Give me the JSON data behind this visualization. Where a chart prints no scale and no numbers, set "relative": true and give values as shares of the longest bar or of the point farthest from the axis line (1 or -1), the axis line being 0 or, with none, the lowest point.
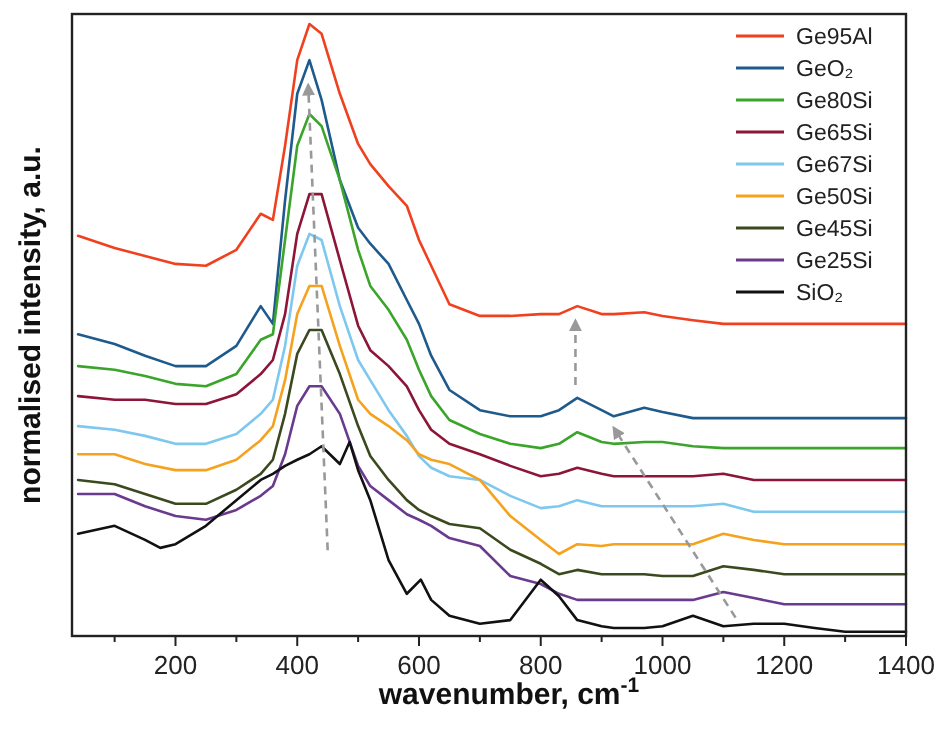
{
  "chart_data": {
    "type": "line",
    "relative": true,
    "xlabel": "wavenumber, cm$^{-1}$",
    "ylabel": "normalised intensity, a.u.",
    "xlim": [
      30,
      1400
    ],
    "xticks": [
      {
        "value": 100,
        "label": null
      },
      200,
      {
        "value": 300,
        "label": null
      },
      400,
      {
        "value": 500,
        "label": null
      },
      600,
      {
        "value": 700,
        "label": null
      },
      800,
      {
        "value": 900,
        "label": null
      },
      1000,
      {
        "value": 1100,
        "label": null
      },
      1200,
      {
        "value": 1300,
        "label": null
      },
      1400
    ],
    "x": [
      40,
      100,
      150,
      200,
      250,
      300,
      340,
      360,
      380,
      400,
      420,
      440,
      470,
      500,
      520,
      550,
      580,
      600,
      620,
      650,
      700,
      750,
      800,
      830,
      860,
      900,
      920,
      970,
      1000,
      1050,
      1100,
      1150,
      1200,
      1250,
      1300,
      1400
    ],
    "legend": "top right",
    "grid": false,
    "marker": "none",
    "line_style": "solid",
    "series": [
      {
        "name": "Ge95Al",
        "color": "#f0401e",
        "values": [
          0.654,
          0.634,
          0.621,
          0.608,
          0.605,
          0.631,
          0.69,
          0.68,
          0.801,
          0.941,
          1.0,
          0.984,
          0.886,
          0.804,
          0.771,
          0.735,
          0.703,
          0.647,
          0.605,
          0.542,
          0.523,
          0.523,
          0.526,
          0.526,
          0.539,
          0.526,
          0.526,
          0.529,
          0.523,
          0.516,
          0.51,
          0.51,
          0.51,
          0.51,
          0.51,
          0.51
        ]
      },
      {
        "name": "GeO₂",
        "color": "#1f5a8c",
        "values": [
          0.493,
          0.477,
          0.458,
          0.441,
          0.441,
          0.474,
          0.539,
          0.51,
          0.712,
          0.886,
          0.941,
          0.876,
          0.745,
          0.667,
          0.641,
          0.608,
          0.549,
          0.51,
          0.458,
          0.402,
          0.369,
          0.359,
          0.359,
          0.369,
          0.389,
          0.369,
          0.359,
          0.373,
          0.366,
          0.356,
          0.356,
          0.356,
          0.356,
          0.356,
          0.356,
          0.356
        ]
      },
      {
        "name": "Ge80Si",
        "color": "#3aa52a",
        "values": [
          0.441,
          0.435,
          0.425,
          0.412,
          0.408,
          0.428,
          0.484,
          0.493,
          0.647,
          0.801,
          0.853,
          0.833,
          0.745,
          0.631,
          0.572,
          0.533,
          0.484,
          0.435,
          0.392,
          0.353,
          0.33,
          0.314,
          0.307,
          0.314,
          0.333,
          0.317,
          0.314,
          0.317,
          0.317,
          0.31,
          0.307,
          0.307,
          0.307,
          0.307,
          0.307,
          0.307
        ]
      },
      {
        "name": "Ge65Si",
        "color": "#8c1538",
        "values": [
          0.392,
          0.386,
          0.386,
          0.379,
          0.379,
          0.395,
          0.428,
          0.451,
          0.526,
          0.657,
          0.722,
          0.722,
          0.614,
          0.507,
          0.467,
          0.441,
          0.408,
          0.369,
          0.337,
          0.314,
          0.297,
          0.278,
          0.261,
          0.265,
          0.275,
          0.265,
          0.261,
          0.261,
          0.261,
          0.261,
          0.265,
          0.255,
          0.255,
          0.255,
          0.255,
          0.255
        ]
      },
      {
        "name": "Ge67Si",
        "color": "#7ec8f0",
        "values": [
          0.343,
          0.337,
          0.327,
          0.314,
          0.314,
          0.33,
          0.363,
          0.386,
          0.474,
          0.605,
          0.657,
          0.647,
          0.539,
          0.451,
          0.418,
          0.369,
          0.327,
          0.294,
          0.275,
          0.261,
          0.255,
          0.229,
          0.209,
          0.212,
          0.222,
          0.212,
          0.212,
          0.212,
          0.212,
          0.212,
          0.216,
          0.203,
          0.203,
          0.203,
          0.203,
          0.203
        ]
      },
      {
        "name": "Ge50Si",
        "color": "#f5a21e",
        "values": [
          0.297,
          0.297,
          0.281,
          0.271,
          0.271,
          0.288,
          0.32,
          0.343,
          0.418,
          0.526,
          0.572,
          0.572,
          0.474,
          0.386,
          0.363,
          0.343,
          0.32,
          0.297,
          0.288,
          0.281,
          0.255,
          0.196,
          0.157,
          0.134,
          0.15,
          0.147,
          0.15,
          0.15,
          0.15,
          0.15,
          0.167,
          0.157,
          0.15,
          0.15,
          0.15,
          0.15
        ]
      },
      {
        "name": "Ge45Si",
        "color": "#3b4a1e",
        "values": [
          0.255,
          0.248,
          0.232,
          0.216,
          0.216,
          0.239,
          0.265,
          0.288,
          0.363,
          0.461,
          0.5,
          0.5,
          0.428,
          0.343,
          0.294,
          0.255,
          0.222,
          0.206,
          0.196,
          0.183,
          0.176,
          0.141,
          0.118,
          0.101,
          0.108,
          0.101,
          0.101,
          0.101,
          0.098,
          0.098,
          0.114,
          0.108,
          0.101,
          0.101,
          0.101,
          0.101
        ]
      },
      {
        "name": "Ge25Si",
        "color": "#6a3a8e",
        "values": [
          0.232,
          0.232,
          0.212,
          0.196,
          0.19,
          0.206,
          0.229,
          0.245,
          0.297,
          0.376,
          0.408,
          0.408,
          0.363,
          0.278,
          0.245,
          0.222,
          0.199,
          0.19,
          0.18,
          0.16,
          0.147,
          0.098,
          0.085,
          0.069,
          0.059,
          0.059,
          0.059,
          0.059,
          0.059,
          0.059,
          0.072,
          0.062,
          0.052,
          0.052,
          0.052,
          0.052
        ]
      },
      {
        "name": "SiO₂",
        "color": "#111111",
        "x": [
          40,
          100,
          150,
          175,
          200,
          250,
          300,
          340,
          360,
          380,
          400,
          420,
          440,
          470,
          486,
          500,
          520,
          550,
          580,
          603,
          620,
          650,
          700,
          750,
          800,
          830,
          860,
          900,
          920,
          970,
          1000,
          1050,
          1100,
          1150,
          1200,
          1250,
          1300,
          1400
        ],
        "values": [
          0.167,
          0.18,
          0.157,
          0.144,
          0.15,
          0.18,
          0.222,
          0.255,
          0.265,
          0.278,
          0.288,
          0.297,
          0.31,
          0.281,
          0.317,
          0.271,
          0.222,
          0.124,
          0.069,
          0.092,
          0.059,
          0.033,
          0.02,
          0.026,
          0.092,
          0.065,
          0.026,
          0.016,
          0.013,
          0.013,
          0.016,
          0.033,
          0.016,
          0.02,
          0.02,
          0.013,
          0.007,
          0.007
        ]
      }
    ]
  }
}
